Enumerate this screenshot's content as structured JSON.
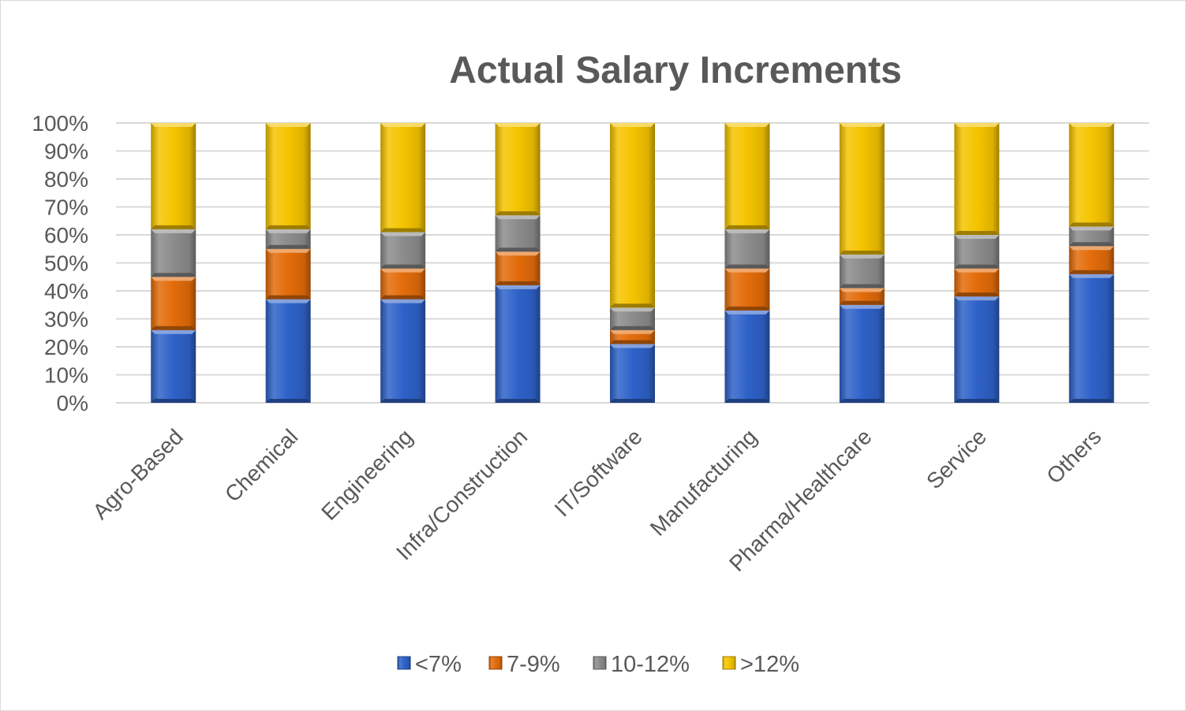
{
  "chart_data": {
    "type": "bar",
    "stacked": true,
    "title": "Actual Salary Increments",
    "categories": [
      "Agro-Based",
      "Chemical",
      "Engineering",
      "Infra/Construction",
      "IT/Software",
      "Manufacturing",
      "Pharma/Healthcare",
      "Service",
      "Others"
    ],
    "series": [
      {
        "name": "<7%",
        "color": "#2f62c9",
        "values": [
          26,
          37,
          37,
          42,
          21,
          33,
          35,
          38,
          46
        ]
      },
      {
        "name": "7-9%",
        "color": "#e36c0a",
        "values": [
          19,
          18,
          11,
          12,
          5,
          15,
          6,
          10,
          10
        ]
      },
      {
        "name": "10-12%",
        "color": "#8c8c8c",
        "values": [
          17,
          7,
          13,
          13,
          8,
          14,
          12,
          12,
          7
        ]
      },
      {
        "name": ">12%",
        "color": "#f5c400",
        "values": [
          38,
          38,
          39,
          33,
          66,
          38,
          47,
          40,
          37
        ]
      }
    ],
    "y_ticks": [
      "0%",
      "10%",
      "20%",
      "30%",
      "40%",
      "50%",
      "60%",
      "70%",
      "80%",
      "90%",
      "100%"
    ],
    "ylim": [
      0,
      100
    ],
    "y_unit": "%",
    "grid": true,
    "legend_position": "bottom"
  }
}
